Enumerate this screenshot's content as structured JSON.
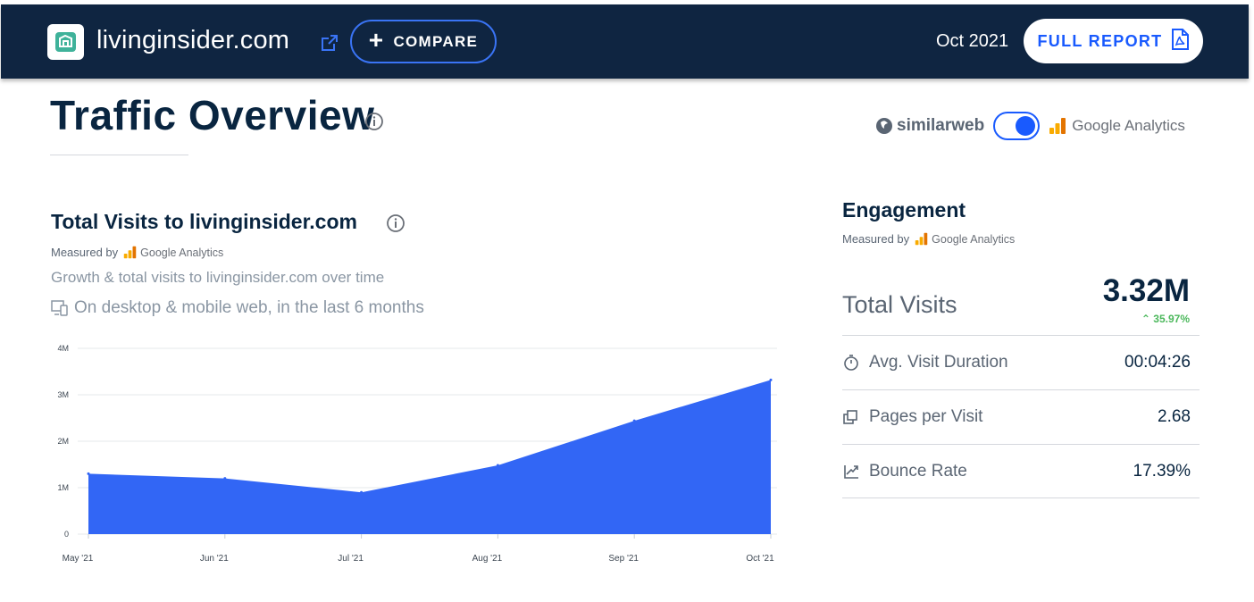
{
  "header": {
    "site_name": "livinginsider.com",
    "compare_label": "COMPARE",
    "date": "Oct 2021",
    "report_label": "FULL REPORT",
    "icons": [
      "site-logo-icon",
      "external-link-icon",
      "plus-icon",
      "pdf-icon"
    ]
  },
  "title": "Traffic Overview",
  "source_toggle": {
    "left_label": "similarweb",
    "right_label": "Google Analytics",
    "selected": "Google Analytics"
  },
  "visits": {
    "title": "Total Visits to livinginsider.com",
    "measured_by": "Measured by",
    "provider": "Google Analytics",
    "subtitle": "Growth & total visits to livinginsider.com over time",
    "scope": "On desktop & mobile web, in the last 6 months"
  },
  "chart_data": {
    "type": "area",
    "title": "",
    "xlabel": "",
    "ylabel": "",
    "categories": [
      "May '21",
      "Jun '21",
      "Jul '21",
      "Aug '21",
      "Sep '21",
      "Oct '21"
    ],
    "values": [
      1300000,
      1200000,
      900000,
      1480000,
      2440000,
      3320000
    ],
    "yticks": [
      "0",
      "1M",
      "2M",
      "3M",
      "4M"
    ],
    "ylim": [
      0,
      4000000
    ],
    "grid": true,
    "color": "#3266f5"
  },
  "engagement": {
    "title": "Engagement",
    "measured_by": "Measured by",
    "provider": "Google Analytics",
    "total_visits_label": "Total Visits",
    "total_visits_value": "3.32M",
    "total_visits_change": "35.97%",
    "rows": [
      {
        "label": "Avg. Visit Duration",
        "value": "00:04:26",
        "icon": "stopwatch-icon"
      },
      {
        "label": "Pages per Visit",
        "value": "2.68",
        "icon": "pages-icon"
      },
      {
        "label": "Bounce Rate",
        "value": "17.39%",
        "icon": "bounce-icon"
      }
    ]
  },
  "colors": {
    "header_bg": "#0f2541",
    "accent": "#195afe",
    "positive": "#4cb85c",
    "text_dark": "#092540"
  }
}
